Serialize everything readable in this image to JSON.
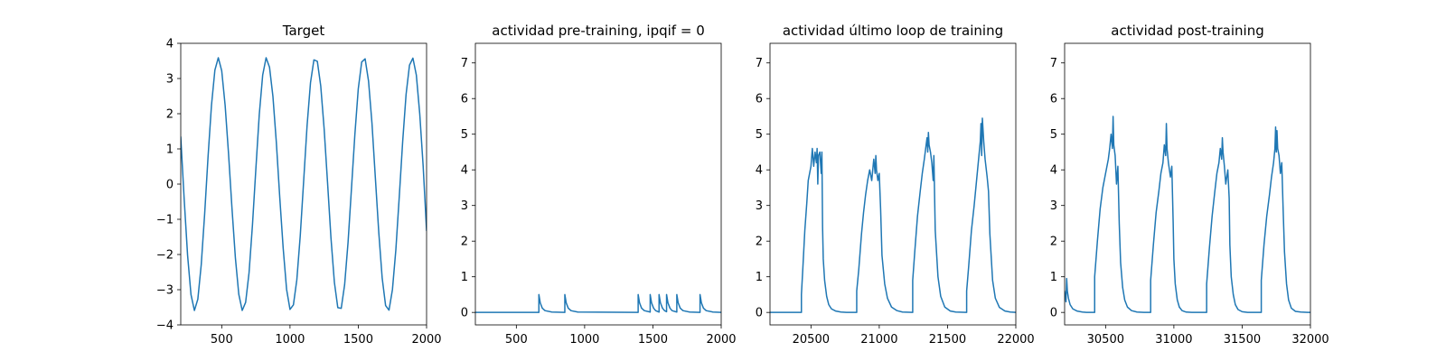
{
  "chart_data": [
    {
      "type": "line",
      "title": "Target",
      "xlabel": "",
      "ylabel": "",
      "xlim": [
        200,
        2000
      ],
      "ylim": [
        -4,
        4
      ],
      "x_ticks": [
        500,
        1000,
        1500,
        2000
      ],
      "y_ticks": [
        -4,
        -3,
        -2,
        -1,
        0,
        1,
        2,
        3,
        4
      ],
      "grid": false,
      "color": "#1f77b4",
      "series": [
        {
          "x": [
            200,
            225,
            250,
            275,
            300,
            325,
            350,
            375,
            400,
            425,
            450,
            475,
            500,
            525,
            550,
            575,
            600,
            625,
            650,
            675,
            700,
            725,
            750,
            775,
            800,
            825,
            850,
            875,
            900,
            925,
            950,
            975,
            1000,
            1025,
            1050,
            1075,
            1100,
            1125,
            1150,
            1175,
            1200,
            1225,
            1250,
            1275,
            1300,
            1325,
            1350,
            1375,
            1400,
            1425,
            1450,
            1475,
            1500,
            1525,
            1550,
            1575,
            1600,
            1625,
            1650,
            1675,
            1700,
            1725,
            1750,
            1775,
            1800,
            1825,
            1850,
            1875,
            1900,
            1925,
            1950,
            1975,
            2000
          ],
          "y": [
            1.34,
            -0.42,
            -2.02,
            -3.14,
            -3.59,
            -3.27,
            -2.29,
            -0.85,
            0.78,
            2.24,
            3.24,
            3.59,
            3.22,
            2.24,
            0.86,
            -0.68,
            -2.09,
            -3.13,
            -3.59,
            -3.36,
            -2.52,
            -1.17,
            0.43,
            1.98,
            3.1,
            3.59,
            3.32,
            2.49,
            1.18,
            -0.38,
            -1.82,
            -2.99,
            -3.56,
            -3.43,
            -2.72,
            -1.47,
            0.09,
            1.66,
            2.88,
            3.53,
            3.49,
            2.79,
            1.57,
            0.04,
            -1.53,
            -2.79,
            -3.51,
            -3.53,
            -2.86,
            -1.66,
            -0.13,
            1.41,
            2.71,
            3.47,
            3.56,
            2.93,
            1.74,
            0.18,
            -1.37,
            -2.67,
            -3.45,
            -3.58,
            -3.0,
            -1.87,
            -0.36,
            1.21,
            2.55,
            3.38,
            3.58,
            3.1,
            2.0,
            0.51,
            -1.32
          ]
        }
      ]
    },
    {
      "type": "line",
      "title": "actividad pre-training, ipqif = 0",
      "xlabel": "",
      "ylabel": "",
      "xlim": [
        200,
        2000
      ],
      "ylim": [
        -0.35,
        7.55
      ],
      "x_ticks": [
        500,
        1000,
        1500,
        2000
      ],
      "y_ticks": [
        0,
        1,
        2,
        3,
        4,
        5,
        6,
        7
      ],
      "grid": false,
      "color": "#1f77b4",
      "series": [
        {
          "x": [
            200,
            665,
            665,
            675,
            690,
            710,
            760,
            855,
            855,
            865,
            880,
            900,
            950,
            1392,
            1392,
            1402,
            1417,
            1437,
            1480,
            1480,
            1490,
            1505,
            1520,
            1545,
            1545,
            1555,
            1570,
            1585,
            1600,
            1600,
            1610,
            1625,
            1640,
            1675,
            1675,
            1685,
            1700,
            1720,
            1770,
            1845,
            1845,
            1855,
            1870,
            1890,
            1940,
            2000
          ],
          "y": [
            0,
            0,
            0.5,
            0.27,
            0.12,
            0.05,
            0.01,
            0,
            0.5,
            0.27,
            0.12,
            0.05,
            0.01,
            0,
            0.5,
            0.27,
            0.12,
            0.05,
            0.01,
            0.5,
            0.27,
            0.12,
            0.05,
            0.01,
            0.5,
            0.27,
            0.12,
            0.05,
            0.02,
            0.5,
            0.27,
            0.12,
            0.05,
            0.01,
            0.5,
            0.27,
            0.12,
            0.05,
            0.01,
            0,
            0.5,
            0.27,
            0.12,
            0.05,
            0.01,
            0
          ]
        }
      ]
    },
    {
      "type": "line",
      "title": "actividad último loop de training",
      "xlabel": "",
      "ylabel": "",
      "xlim": [
        20200,
        22000
      ],
      "ylim": [
        -0.35,
        7.55
      ],
      "x_ticks": [
        20500,
        21000,
        21500,
        22000
      ],
      "y_ticks": [
        0,
        1,
        2,
        3,
        4,
        5,
        6,
        7
      ],
      "grid": false,
      "color": "#1f77b4",
      "series": [
        {
          "x": [
            20200,
            20430,
            20430,
            20440,
            20455,
            20470,
            20480,
            20490,
            20500,
            20510,
            20520,
            20530,
            20540,
            20545,
            20550,
            20555,
            20565,
            20575,
            20580,
            20585,
            20590,
            20600,
            20615,
            20630,
            20650,
            20680,
            20720,
            20760,
            20835,
            20835,
            20850,
            20870,
            20885,
            20900,
            20915,
            20930,
            20945,
            20960,
            20970,
            20975,
            20980,
            20990,
            21000,
            21010,
            21020,
            21040,
            21060,
            21090,
            21130,
            21170,
            21245,
            21245,
            21260,
            21280,
            21300,
            21315,
            21330,
            21340,
            21350,
            21355,
            21360,
            21365,
            21375,
            21385,
            21395,
            21400,
            21410,
            21430,
            21450,
            21480,
            21520,
            21560,
            21640,
            21640,
            21655,
            21675,
            21695,
            21710,
            21720,
            21730,
            21740,
            21745,
            21750,
            21755,
            21765,
            21775,
            21790,
            21800,
            21810,
            21830,
            21850,
            21880,
            21920,
            21960,
            22000
          ],
          "y": [
            0,
            0,
            0.5,
            1.2,
            2.3,
            3.1,
            3.7,
            3.9,
            4.1,
            4.6,
            4.1,
            4.5,
            4.2,
            4.6,
            3.6,
            4.4,
            4.5,
            3.9,
            4.5,
            2.4,
            1.5,
            0.9,
            0.45,
            0.22,
            0.1,
            0.04,
            0.01,
            0,
            0,
            0.6,
            1.2,
            2.2,
            2.8,
            3.3,
            3.7,
            4.0,
            3.7,
            4.3,
            3.9,
            4.4,
            4.0,
            3.7,
            3.9,
            2.9,
            1.6,
            0.8,
            0.4,
            0.15,
            0.05,
            0.01,
            0,
            0.9,
            1.7,
            2.7,
            3.4,
            3.9,
            4.3,
            4.6,
            4.9,
            4.5,
            5.05,
            4.7,
            4.5,
            4.2,
            3.7,
            4.4,
            2.3,
            1.0,
            0.45,
            0.15,
            0.04,
            0.01,
            0,
            0.6,
            1.3,
            2.3,
            3.0,
            3.6,
            4.0,
            4.4,
            4.8,
            5.3,
            4.4,
            5.45,
            4.8,
            4.3,
            3.8,
            3.4,
            2.2,
            0.9,
            0.4,
            0.14,
            0.04,
            0.01,
            0
          ]
        }
      ]
    },
    {
      "type": "line",
      "title": "actividad post-training",
      "xlabel": "",
      "ylabel": "",
      "xlim": [
        30200,
        32000
      ],
      "ylim": [
        -0.35,
        7.55
      ],
      "x_ticks": [
        30500,
        31000,
        31500,
        32000
      ],
      "y_ticks": [
        0,
        1,
        2,
        3,
        4,
        5,
        6,
        7
      ],
      "grid": false,
      "color": "#1f77b4",
      "series": [
        {
          "x": [
            30200,
            30210,
            30215,
            30220,
            30228,
            30240,
            30260,
            30290,
            30330,
            30360,
            30420,
            30420,
            30440,
            30460,
            30480,
            30500,
            30520,
            30530,
            30540,
            30550,
            30555,
            30560,
            30570,
            30580,
            30590,
            30600,
            30610,
            30625,
            30640,
            30660,
            30690,
            30730,
            30780,
            30830,
            30830,
            30850,
            30870,
            30890,
            30905,
            30920,
            30930,
            30940,
            30945,
            30950,
            30960,
            30975,
            30985,
            30995,
            31000,
            31010,
            31025,
            31040,
            31060,
            31090,
            31130,
            31180,
            31240,
            31240,
            31260,
            31280,
            31300,
            31315,
            31330,
            31340,
            31350,
            31355,
            31360,
            31370,
            31380,
            31395,
            31405,
            31410,
            31420,
            31435,
            31450,
            31470,
            31500,
            31540,
            31590,
            31640,
            31640,
            31660,
            31680,
            31700,
            31715,
            31730,
            31740,
            31745,
            31750,
            31755,
            31760,
            31770,
            31780,
            31790,
            31800,
            31810,
            31825,
            31840,
            31860,
            31890,
            31930,
            31980,
            32000
          ],
          "y": [
            0.6,
            0.3,
            0.95,
            0.6,
            0.4,
            0.22,
            0.1,
            0.04,
            0.01,
            0,
            0,
            1.0,
            2.0,
            2.9,
            3.5,
            3.9,
            4.3,
            4.6,
            5.0,
            4.6,
            5.5,
            4.7,
            4.4,
            3.6,
            4.1,
            2.5,
            1.4,
            0.7,
            0.35,
            0.15,
            0.05,
            0.01,
            0,
            0,
            0.9,
            1.9,
            2.8,
            3.4,
            3.9,
            4.2,
            4.7,
            4.4,
            5.3,
            4.6,
            4.2,
            3.8,
            4.1,
            2.5,
            1.5,
            0.8,
            0.35,
            0.15,
            0.05,
            0.01,
            0,
            0,
            0,
            0.8,
            1.8,
            2.7,
            3.4,
            3.9,
            4.2,
            4.6,
            4.3,
            4.9,
            4.5,
            4.1,
            3.6,
            4.0,
            3.2,
            1.9,
            1.0,
            0.5,
            0.22,
            0.08,
            0.02,
            0,
            0,
            0,
            0.9,
            1.9,
            2.7,
            3.3,
            3.8,
            4.2,
            4.6,
            5.2,
            4.5,
            5.1,
            4.6,
            4.4,
            3.9,
            4.2,
            2.9,
            1.7,
            0.8,
            0.35,
            0.12,
            0.03,
            0.01,
            0,
            0
          ]
        }
      ]
    }
  ]
}
